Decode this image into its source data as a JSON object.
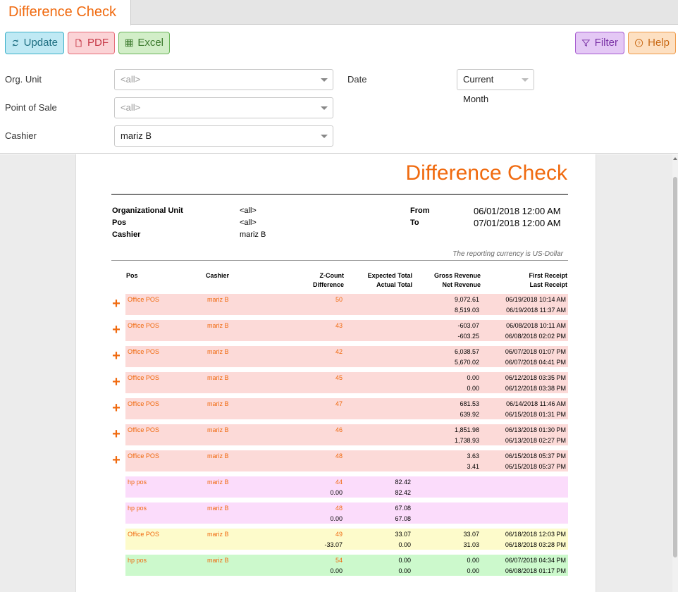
{
  "tab": {
    "title": "Difference Check"
  },
  "toolbar": {
    "update": "Update",
    "pdf": "PDF",
    "excel": "Excel",
    "filter": "Filter",
    "help": "Help"
  },
  "filters": {
    "org_unit_label": "Org. Unit",
    "org_unit_value": "<all>",
    "pos_label": "Point of Sale",
    "pos_value": "<all>",
    "cashier_label": "Cashier",
    "cashier_value": "mariz B",
    "date_label": "Date",
    "date_value": "Current Month"
  },
  "report": {
    "title": "Difference Check",
    "meta": {
      "org_label": "Organizational Unit",
      "org_value": "<all>",
      "pos_label": "Pos",
      "pos_value": "<all>",
      "cashier_label": "Cashier",
      "cashier_value": "mariz B",
      "from_label": "From",
      "from_value": "06/01/2018 12:00 AM",
      "to_label": "To",
      "to_value": "07/01/2018 12:00 AM"
    },
    "currency_note": "The reporting currency is US-Dollar",
    "headers": {
      "pos": "Pos",
      "cashier": "Cashier",
      "zcount": "Z-Count",
      "difference": "Difference",
      "expected": "Expected Total",
      "actual": "Actual Total",
      "gross": "Gross Revenue",
      "net": "Net Revenue",
      "first": "First Receipt",
      "last": "Last Receipt"
    },
    "rows": [
      {
        "color": "red",
        "expand": true,
        "pos": "Office POS",
        "cashier": "mariz B",
        "zcount": "50",
        "diff": "",
        "expected": "",
        "actual": "",
        "gross": "9,072.61",
        "net": "8,519.03",
        "first": "06/19/2018 10:14 AM",
        "last": "06/19/2018 11:37 AM"
      },
      {
        "color": "red",
        "expand": true,
        "pos": "Office POS",
        "cashier": "mariz B",
        "zcount": "43",
        "diff": "",
        "expected": "",
        "actual": "",
        "gross": "-603.07",
        "net": "-603.25",
        "first": "06/08/2018 10:11 AM",
        "last": "06/08/2018 02:02 PM"
      },
      {
        "color": "red",
        "expand": true,
        "pos": "Office POS",
        "cashier": "mariz B",
        "zcount": "42",
        "diff": "",
        "expected": "",
        "actual": "",
        "gross": "6,038.57",
        "net": "5,670.02",
        "first": "06/07/2018 01:07 PM",
        "last": "06/07/2018 04:41 PM"
      },
      {
        "color": "red",
        "expand": true,
        "pos": "Office POS",
        "cashier": "mariz B",
        "zcount": "45",
        "diff": "",
        "expected": "",
        "actual": "",
        "gross": "0.00",
        "net": "0.00",
        "first": "06/12/2018 03:35 PM",
        "last": "06/12/2018 03:38 PM"
      },
      {
        "color": "red",
        "expand": true,
        "pos": "Office POS",
        "cashier": "mariz B",
        "zcount": "47",
        "diff": "",
        "expected": "",
        "actual": "",
        "gross": "681.53",
        "net": "639.92",
        "first": "06/14/2018 11:46 AM",
        "last": "06/15/2018 01:31 PM"
      },
      {
        "color": "red",
        "expand": true,
        "pos": "Office POS",
        "cashier": "mariz B",
        "zcount": "46",
        "diff": "",
        "expected": "",
        "actual": "",
        "gross": "1,851.98",
        "net": "1,738.93",
        "first": "06/13/2018 01:30 PM",
        "last": "06/13/2018 02:27 PM"
      },
      {
        "color": "red",
        "expand": true,
        "pos": "Office POS",
        "cashier": "mariz B",
        "zcount": "48",
        "diff": "",
        "expected": "",
        "actual": "",
        "gross": "3.63",
        "net": "3.41",
        "first": "06/15/2018 05:37 PM",
        "last": "06/15/2018 05:37 PM"
      },
      {
        "color": "pink",
        "expand": false,
        "pos": "hp pos",
        "cashier": "mariz B",
        "zcount": "44",
        "diff": "0.00",
        "expected": "82.42",
        "actual": "82.42",
        "gross": "",
        "net": "",
        "first": "",
        "last": ""
      },
      {
        "color": "pink",
        "expand": false,
        "pos": "hp pos",
        "cashier": "mariz B",
        "zcount": "48",
        "diff": "0.00",
        "expected": "67.08",
        "actual": "67.08",
        "gross": "",
        "net": "",
        "first": "",
        "last": ""
      },
      {
        "color": "yellow",
        "expand": false,
        "pos": "Office POS",
        "cashier": "mariz B",
        "zcount": "49",
        "diff": "-33.07",
        "expected": "33.07",
        "actual": "0.00",
        "gross": "33.07",
        "net": "31.03",
        "first": "06/18/2018 12:03 PM",
        "last": "06/18/2018 03:28 PM"
      },
      {
        "color": "green",
        "expand": false,
        "pos": "hp pos",
        "cashier": "mariz B",
        "zcount": "54",
        "diff": "0.00",
        "expected": "0.00",
        "actual": "0.00",
        "gross": "0.00",
        "net": "0.00",
        "first": "06/07/2018 04:34 PM",
        "last": "06/08/2018 01:17 PM"
      }
    ]
  }
}
